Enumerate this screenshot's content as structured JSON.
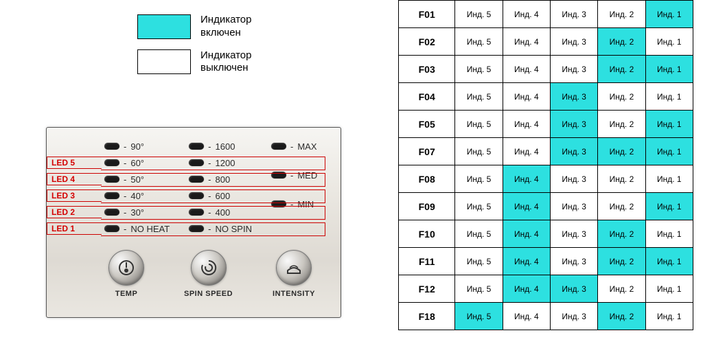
{
  "colors": {
    "on": "#2de0e0",
    "off": "#ffffff",
    "border": "#000000",
    "callout": "#d40000",
    "panel_bg_top": "#f6f5f2",
    "panel_bg_bottom": "#eae7e1"
  },
  "legend": {
    "on_swatch": "#2de0e0",
    "off_swatch": "#ffffff",
    "on_text": "Индикатор\nвключен",
    "off_text": "Индикатор\nвыключен"
  },
  "panel": {
    "temp": {
      "label": "TEMP",
      "values": [
        "90°",
        "60°",
        "50°",
        "40°",
        "30°",
        "NO HEAT"
      ]
    },
    "spin": {
      "label": "SPIN SPEED",
      "values": [
        "1600",
        "1200",
        "800",
        "600",
        "400",
        "NO SPIN"
      ]
    },
    "intensity": {
      "label": "INTENSITY",
      "values": [
        "MAX",
        "MED",
        "MIN"
      ]
    },
    "callouts": [
      "LED 5",
      "LED 4",
      "LED 3",
      "LED 2",
      "LED 1"
    ]
  },
  "error_table": {
    "indicator_label": "Инд.",
    "columns": [
      5,
      4,
      3,
      2,
      1
    ],
    "rows": [
      {
        "code": "F01",
        "on": [
          1
        ]
      },
      {
        "code": "F02",
        "on": [
          2
        ]
      },
      {
        "code": "F03",
        "on": [
          2,
          1
        ]
      },
      {
        "code": "F04",
        "on": [
          3
        ]
      },
      {
        "code": "F05",
        "on": [
          3,
          1
        ]
      },
      {
        "code": "F07",
        "on": [
          3,
          2,
          1
        ]
      },
      {
        "code": "F08",
        "on": [
          4
        ]
      },
      {
        "code": "F09",
        "on": [
          4,
          1
        ]
      },
      {
        "code": "F10",
        "on": [
          4,
          2
        ]
      },
      {
        "code": "F11",
        "on": [
          4,
          2,
          1
        ]
      },
      {
        "code": "F12",
        "on": [
          4,
          3
        ]
      },
      {
        "code": "F18",
        "on": [
          5,
          2
        ]
      }
    ]
  }
}
